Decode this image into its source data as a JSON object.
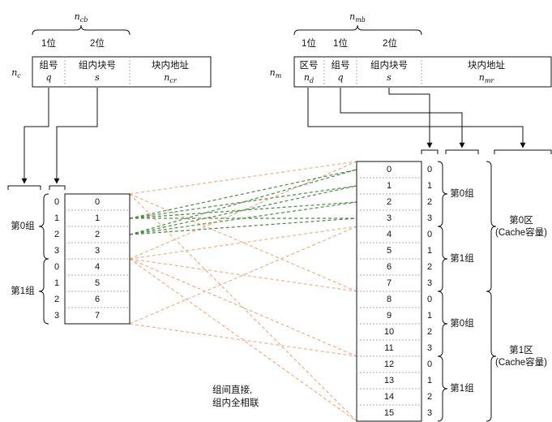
{
  "cache_address": {
    "width_label": {
      "sym": "n",
      "sub": "cb"
    },
    "bit_labels": [
      "1位",
      "2位"
    ],
    "side_label": {
      "sym": "n",
      "sub": "c"
    },
    "fields": [
      {
        "title": "组号",
        "sym": "q",
        "sub": ""
      },
      {
        "title": "组内块号",
        "sym": "s",
        "sub": ""
      },
      {
        "title": "块内地址",
        "sym": "n",
        "sub": "cr"
      }
    ]
  },
  "memory_address": {
    "width_label": {
      "sym": "n",
      "sub": "mb"
    },
    "bit_labels": [
      "1位",
      "1位",
      "2位"
    ],
    "side_label": {
      "sym": "n",
      "sub": "m"
    },
    "fields": [
      {
        "title": "区号",
        "sym": "n",
        "sub": "d"
      },
      {
        "title": "组号",
        "sym": "q",
        "sub": ""
      },
      {
        "title": "组内块号",
        "sym": "s",
        "sub": ""
      },
      {
        "title": "块内地址",
        "sym": "n",
        "sub": "mr"
      }
    ]
  },
  "cache": {
    "blocks": [
      "0",
      "1",
      "2",
      "3",
      "4",
      "5",
      "6",
      "7"
    ],
    "group_index": [
      "0",
      "1",
      "2",
      "3",
      "0",
      "1",
      "2",
      "3"
    ],
    "groups": [
      "第0组",
      "第1组"
    ]
  },
  "memory": {
    "blocks": [
      "0",
      "1",
      "2",
      "3",
      "4",
      "5",
      "6",
      "7",
      "8",
      "9",
      "10",
      "11",
      "12",
      "13",
      "14",
      "15"
    ],
    "group_index": [
      "0",
      "1",
      "2",
      "3",
      "0",
      "1",
      "2",
      "3",
      "0",
      "1",
      "2",
      "3",
      "0",
      "1",
      "2",
      "3"
    ],
    "groups": [
      "第0组",
      "第1组",
      "第0组",
      "第1组"
    ],
    "regions": [
      {
        "line1": "第0区",
        "line2": "(Cache容量)"
      },
      {
        "line1": "第1区",
        "line2": "(Cache容量)"
      }
    ]
  },
  "annotation": {
    "line1": "组间直接,",
    "line2": "组内全相联"
  },
  "colors": {
    "line": "#111111",
    "dotted": "#aaaaaa",
    "orange": "#f0a070",
    "green": "#4e8a46"
  }
}
